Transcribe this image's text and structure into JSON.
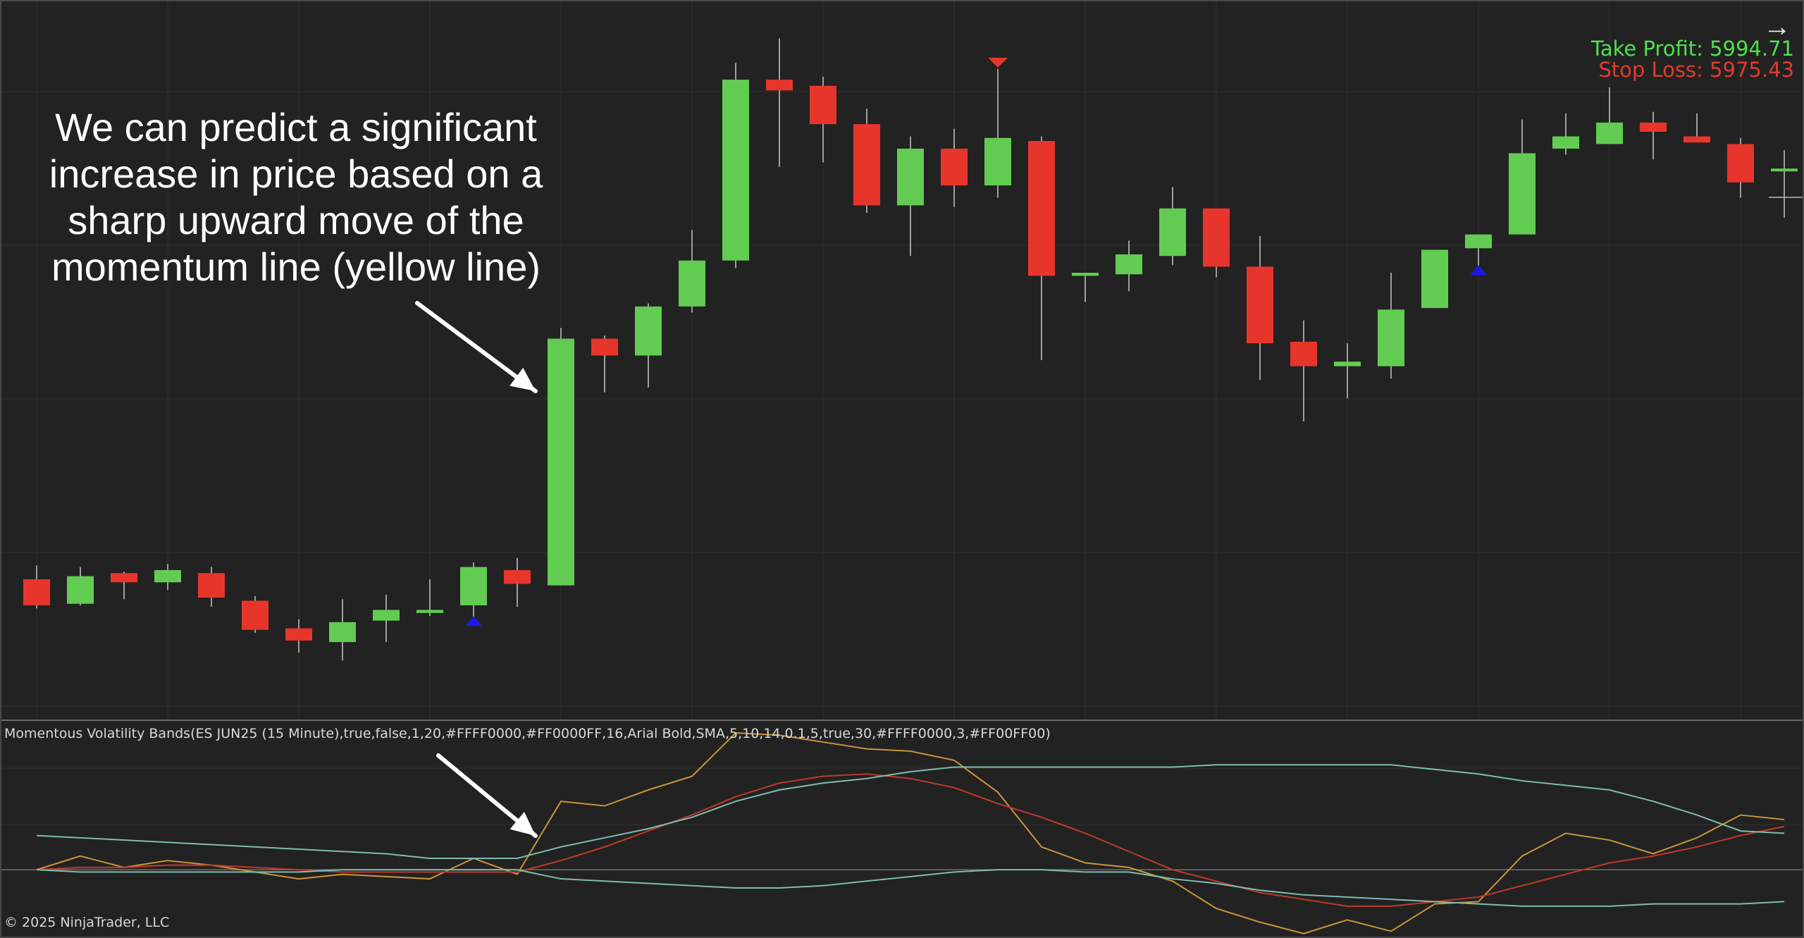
{
  "orders": {
    "take_profit": "Take Profit: 5994.71",
    "stop_loss": "Stop Loss: 5975.43",
    "take_profit_color": "#4fe04f",
    "stop_loss_color": "#e03a2f"
  },
  "annotation": {
    "line1": "We can predict a significant",
    "line2": "increase in price based on a",
    "line3": "sharp upward move of the",
    "line4": "momentum line (yellow line)"
  },
  "indicator": {
    "label": "Momentous Volatility Bands(ES JUN25 (15 Minute),true,false,1,20,#FFFF0000,#FF0000FF,16,Arial Bold,SMA,5,10,14,0.1,5,true,30,#FFFF0000,3,#FF00FF00)"
  },
  "footer": {
    "copyright": "© 2025 NinjaTrader, LLC"
  },
  "colors": {
    "background": "#222222",
    "up_candle": "#62cc52",
    "down_candle": "#e8352b",
    "wick": "#c8c8c8",
    "signal_up": "#1a1ae6",
    "signal_down": "#e8352b",
    "momentum_line": "#c9953a",
    "red_line": "#c0392b",
    "upper_band": "#7fbcb0",
    "lower_band": "#7fbcb0",
    "grid": "#303030"
  },
  "icons": {
    "navigate": "right-arrow-icon"
  },
  "chart_data": [
    {
      "type": "candlestick",
      "series_name": "ES JUN25 (15 Minute)",
      "candles": [
        {
          "o": 5965.2,
          "h": 5966.1,
          "l": 5963.3,
          "c": 5963.5
        },
        {
          "o": 5963.6,
          "h": 5966.0,
          "l": 5963.5,
          "c": 5965.4
        },
        {
          "o": 5965.6,
          "h": 5965.7,
          "l": 5963.9,
          "c": 5965.0
        },
        {
          "o": 5965.0,
          "h": 5966.2,
          "l": 5964.5,
          "c": 5965.8
        },
        {
          "o": 5965.6,
          "h": 5966.0,
          "l": 5963.4,
          "c": 5964.0
        },
        {
          "o": 5963.8,
          "h": 5964.1,
          "l": 5961.7,
          "c": 5961.9
        },
        {
          "o": 5962.0,
          "h": 5962.6,
          "l": 5960.4,
          "c": 5961.2
        },
        {
          "o": 5961.1,
          "h": 5963.9,
          "l": 5959.9,
          "c": 5962.4
        },
        {
          "o": 5962.5,
          "h": 5964.2,
          "l": 5961.1,
          "c": 5963.2
        },
        {
          "o": 5963.0,
          "h": 5965.2,
          "l": 5962.8,
          "c": 5963.2
        },
        {
          "o": 5963.5,
          "h": 5966.3,
          "l": 5962.7,
          "c": 5966.0
        },
        {
          "o": 5965.8,
          "h": 5966.6,
          "l": 5963.4,
          "c": 5964.9
        },
        {
          "o": 5964.8,
          "h": 5981.6,
          "l": 5964.8,
          "c": 5980.9
        },
        {
          "o": 5980.9,
          "h": 5981.1,
          "l": 5977.4,
          "c": 5979.8
        },
        {
          "o": 5979.8,
          "h": 5983.2,
          "l": 5977.7,
          "c": 5983.0
        },
        {
          "o": 5983.0,
          "h": 5988.0,
          "l": 5982.6,
          "c": 5986.0
        },
        {
          "o": 5986.0,
          "h": 5998.9,
          "l": 5985.5,
          "c": 5997.8
        },
        {
          "o": 5997.8,
          "h": 6000.5,
          "l": 5992.1,
          "c": 5997.1
        },
        {
          "o": 5997.4,
          "h": 5998.0,
          "l": 5992.4,
          "c": 5994.9
        },
        {
          "o": 5994.9,
          "h": 5995.9,
          "l": 5989.1,
          "c": 5989.6
        },
        {
          "o": 5989.6,
          "h": 5994.1,
          "l": 5986.3,
          "c": 5993.3
        },
        {
          "o": 5993.3,
          "h": 5994.6,
          "l": 5989.5,
          "c": 5990.9
        },
        {
          "o": 5990.9,
          "h": 5998.5,
          "l": 5990.1,
          "c": 5994.0
        },
        {
          "o": 5993.8,
          "h": 5994.1,
          "l": 5979.5,
          "c": 5985.0
        },
        {
          "o": 5985.0,
          "h": 5985.2,
          "l": 5983.3,
          "c": 5985.2
        },
        {
          "o": 5985.1,
          "h": 5987.3,
          "l": 5984.0,
          "c": 5986.4
        },
        {
          "o": 5986.3,
          "h": 5990.8,
          "l": 5985.7,
          "c": 5989.4
        },
        {
          "o": 5989.4,
          "h": 5989.4,
          "l": 5984.9,
          "c": 5985.6
        },
        {
          "o": 5985.6,
          "h": 5987.6,
          "l": 5978.2,
          "c": 5980.6
        },
        {
          "o": 5980.7,
          "h": 5982.1,
          "l": 5975.5,
          "c": 5979.1
        },
        {
          "o": 5979.1,
          "h": 5980.6,
          "l": 5977.0,
          "c": 5979.4
        },
        {
          "o": 5979.1,
          "h": 5985.2,
          "l": 5978.3,
          "c": 5982.8
        },
        {
          "o": 5982.9,
          "h": 5986.6,
          "l": 5982.9,
          "c": 5986.7
        },
        {
          "o": 5986.8,
          "h": 5987.6,
          "l": 5985.6,
          "c": 5987.7
        },
        {
          "o": 5987.7,
          "h": 5995.2,
          "l": 5987.7,
          "c": 5993.0
        },
        {
          "o": 5993.3,
          "h": 5995.6,
          "l": 5992.9,
          "c": 5994.1
        },
        {
          "o": 5993.6,
          "h": 5997.3,
          "l": 5993.6,
          "c": 5995.0
        },
        {
          "o": 5995.0,
          "h": 5995.7,
          "l": 5992.6,
          "c": 5994.4
        },
        {
          "o": 5994.1,
          "h": 5995.6,
          "l": 5993.9,
          "c": 5993.7
        },
        {
          "o": 5993.6,
          "h": 5994.0,
          "l": 5990.1,
          "c": 5991.1
        },
        {
          "o": 5992.0,
          "h": 5993.2,
          "l": 5988.8,
          "c": 5992.0
        }
      ],
      "signals": [
        {
          "index": 10,
          "direction": "up"
        },
        {
          "index": 22,
          "direction": "down"
        },
        {
          "index": 33,
          "direction": "up"
        }
      ],
      "ylim": [
        5956.0,
        6003.0
      ]
    },
    {
      "type": "line",
      "title": "Momentous Volatility Bands",
      "series": [
        {
          "color": "#c9953a",
          "values": [
            0,
            0.6,
            0.1,
            0.4,
            0.2,
            -0.1,
            -0.4,
            -0.2,
            -0.3,
            -0.4,
            0.5,
            -0.2,
            3.0,
            2.8,
            3.5,
            4.1,
            6.0,
            5.9,
            5.6,
            5.3,
            5.2,
            4.8,
            3.4,
            1.0,
            0.3,
            0.1,
            -0.5,
            -1.7,
            -2.3,
            -2.8,
            -2.2,
            -2.7,
            -1.5,
            -1.4,
            0.6,
            1.6,
            1.3,
            0.7,
            1.4,
            2.4,
            2.2
          ]
        },
        {
          "color": "#c0392b",
          "values": [
            0,
            0.1,
            0.1,
            0.2,
            0.2,
            0.1,
            0.0,
            -0.1,
            -0.1,
            -0.1,
            -0.1,
            -0.1,
            0.4,
            1.0,
            1.7,
            2.4,
            3.2,
            3.8,
            4.1,
            4.2,
            4.0,
            3.6,
            2.9,
            2.3,
            1.6,
            0.8,
            0.0,
            -0.5,
            -1.0,
            -1.3,
            -1.6,
            -1.6,
            -1.4,
            -1.2,
            -0.7,
            -0.2,
            0.3,
            0.6,
            1.0,
            1.5,
            1.9
          ]
        },
        {
          "color": "#7fbcb0",
          "values": [
            1.5,
            1.4,
            1.3,
            1.2,
            1.1,
            1.0,
            0.9,
            0.8,
            0.7,
            0.5,
            0.5,
            0.5,
            1.0,
            1.4,
            1.8,
            2.3,
            3.0,
            3.5,
            3.8,
            4.0,
            4.3,
            4.5,
            4.5,
            4.5,
            4.5,
            4.5,
            4.5,
            4.6,
            4.6,
            4.6,
            4.6,
            4.6,
            4.4,
            4.2,
            3.9,
            3.7,
            3.5,
            3.0,
            2.4,
            1.7,
            1.6
          ]
        },
        {
          "color": "#7fbcb0",
          "values": [
            0.0,
            -0.1,
            -0.1,
            -0.1,
            -0.1,
            -0.1,
            -0.1,
            0.0,
            0.0,
            0.0,
            0.0,
            0.0,
            -0.4,
            -0.5,
            -0.6,
            -0.7,
            -0.8,
            -0.8,
            -0.7,
            -0.5,
            -0.3,
            -0.1,
            0.0,
            0.0,
            -0.1,
            -0.1,
            -0.4,
            -0.6,
            -0.9,
            -1.1,
            -1.2,
            -1.3,
            -1.4,
            -1.5,
            -1.6,
            -1.6,
            -1.6,
            -1.5,
            -1.5,
            -1.5,
            -1.4
          ]
        }
      ],
      "ylim": [
        -2.5,
        6.0
      ],
      "grid": true
    }
  ]
}
